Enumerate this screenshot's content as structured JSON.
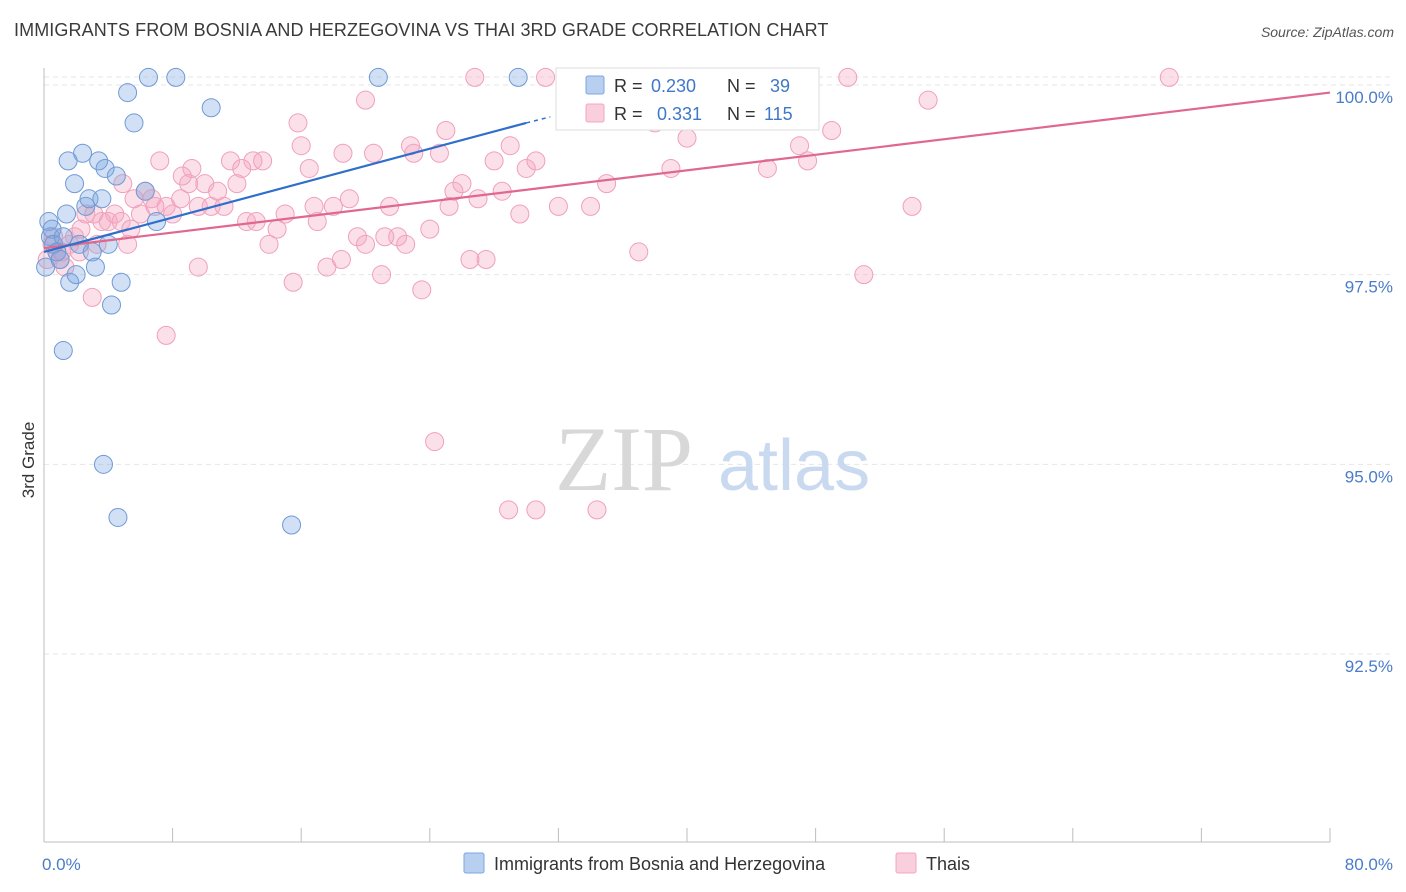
{
  "title": "IMMIGRANTS FROM BOSNIA AND HERZEGOVINA VS THAI 3RD GRADE CORRELATION CHART",
  "source": "Source: ZipAtlas.com",
  "watermark": {
    "zip": "ZIP",
    "atlas": "atlas"
  },
  "colors": {
    "blue": "#7ba7e0",
    "blue_line": "#2f6fcb",
    "pink": "#f4a6c0",
    "pink_line": "#e0688f",
    "tick_text": "#4a7cc9"
  },
  "legend": {
    "rows": [
      {
        "r_label": "R =",
        "r_value": "0.230",
        "n_label": "N =",
        "n_value": "39"
      },
      {
        "r_label": "R =",
        "r_value": "0.331",
        "n_label": "N =",
        "n_value": "115"
      }
    ]
  },
  "bottom_legend": [
    "Immigrants from Bosnia and Herzegovina",
    "Thais"
  ],
  "chart_data": {
    "type": "scatter",
    "title": "IMMIGRANTS FROM BOSNIA AND HERZEGOVINA VS THAI 3RD GRADE CORRELATION CHART",
    "xlabel": "",
    "ylabel": "3rd Grade",
    "xlim": [
      0,
      80
    ],
    "ylim": [
      90.0,
      100.6
    ],
    "x_tick_labels": [
      "0.0%",
      "80.0%"
    ],
    "y_ticks": [
      92.5,
      95.0,
      97.5,
      100.0
    ],
    "y_tick_labels": [
      "92.5%",
      "95.0%",
      "97.5%",
      "100.0%"
    ],
    "grid": true,
    "legend_position": "top-center",
    "series": [
      {
        "name": "Immigrants from Bosnia and Herzegovina",
        "r": 0.23,
        "n": 39,
        "trend": {
          "x": [
            0.0,
            30.0
          ],
          "y": [
            97.8,
            99.5
          ]
        },
        "points": [
          [
            0.1,
            97.6
          ],
          [
            0.3,
            98.2
          ],
          [
            0.4,
            98.0
          ],
          [
            0.5,
            98.1
          ],
          [
            0.6,
            97.9
          ],
          [
            0.8,
            97.8
          ],
          [
            1.0,
            97.7
          ],
          [
            1.2,
            98.0
          ],
          [
            1.4,
            98.3
          ],
          [
            1.5,
            99.0
          ],
          [
            1.6,
            97.4
          ],
          [
            1.9,
            98.7
          ],
          [
            2.0,
            97.5
          ],
          [
            2.2,
            97.9
          ],
          [
            2.4,
            99.1
          ],
          [
            2.6,
            98.4
          ],
          [
            2.8,
            98.5
          ],
          [
            3.0,
            97.8
          ],
          [
            3.2,
            97.6
          ],
          [
            3.4,
            99.0
          ],
          [
            3.6,
            98.5
          ],
          [
            3.8,
            98.9
          ],
          [
            4.0,
            97.9
          ],
          [
            4.2,
            97.1
          ],
          [
            4.5,
            98.8
          ],
          [
            4.8,
            97.4
          ],
          [
            5.2,
            99.9
          ],
          [
            5.6,
            99.5
          ],
          [
            6.3,
            98.6
          ],
          [
            6.5,
            100.1
          ],
          [
            7.0,
            98.2
          ],
          [
            8.2,
            100.1
          ],
          [
            10.4,
            99.7
          ],
          [
            20.8,
            100.1
          ],
          [
            29.5,
            100.1
          ],
          [
            1.2,
            96.5
          ],
          [
            3.7,
            95.0
          ],
          [
            4.6,
            94.3
          ],
          [
            15.4,
            94.2
          ]
        ]
      },
      {
        "name": "Thais",
        "r": 0.331,
        "n": 115,
        "trend": {
          "x": [
            0.0,
            80.0
          ],
          "y": [
            97.85,
            99.9
          ]
        },
        "points": [
          [
            0.2,
            97.7
          ],
          [
            0.5,
            97.9
          ],
          [
            0.8,
            97.8
          ],
          [
            1.0,
            97.7
          ],
          [
            1.3,
            97.6
          ],
          [
            1.6,
            97.9
          ],
          [
            1.9,
            98.0
          ],
          [
            2.2,
            97.8
          ],
          [
            2.6,
            98.3
          ],
          [
            3.0,
            97.2
          ],
          [
            3.3,
            97.9
          ],
          [
            3.6,
            98.2
          ],
          [
            4.0,
            98.2
          ],
          [
            4.4,
            98.3
          ],
          [
            4.8,
            98.2
          ],
          [
            5.2,
            97.9
          ],
          [
            5.6,
            98.5
          ],
          [
            6.0,
            98.3
          ],
          [
            6.3,
            98.6
          ],
          [
            6.7,
            98.5
          ],
          [
            7.2,
            99.0
          ],
          [
            7.6,
            98.4
          ],
          [
            8.0,
            98.3
          ],
          [
            8.5,
            98.5
          ],
          [
            9.0,
            98.7
          ],
          [
            9.6,
            98.4
          ],
          [
            10.0,
            98.7
          ],
          [
            10.4,
            98.4
          ],
          [
            10.8,
            98.6
          ],
          [
            11.2,
            98.4
          ],
          [
            11.6,
            99.0
          ],
          [
            12.0,
            98.7
          ],
          [
            12.6,
            98.2
          ],
          [
            13.0,
            99.0
          ],
          [
            13.6,
            99.0
          ],
          [
            14.0,
            97.9
          ],
          [
            14.5,
            98.1
          ],
          [
            15.0,
            98.3
          ],
          [
            15.5,
            97.4
          ],
          [
            16.0,
            99.2
          ],
          [
            16.5,
            98.9
          ],
          [
            17.0,
            98.2
          ],
          [
            17.6,
            97.6
          ],
          [
            18.0,
            98.4
          ],
          [
            18.5,
            97.7
          ],
          [
            19.0,
            98.5
          ],
          [
            19.5,
            98.0
          ],
          [
            20.0,
            97.9
          ],
          [
            20.5,
            99.1
          ],
          [
            21.0,
            97.5
          ],
          [
            21.5,
            98.4
          ],
          [
            22.0,
            98.0
          ],
          [
            22.5,
            97.9
          ],
          [
            23.0,
            99.1
          ],
          [
            23.5,
            97.3
          ],
          [
            24.0,
            98.1
          ],
          [
            24.6,
            99.1
          ],
          [
            25.0,
            99.4
          ],
          [
            25.5,
            98.6
          ],
          [
            26.0,
            98.7
          ],
          [
            26.5,
            97.7
          ],
          [
            27.0,
            98.5
          ],
          [
            27.5,
            97.7
          ],
          [
            28.0,
            99.0
          ],
          [
            28.5,
            98.6
          ],
          [
            29.0,
            99.2
          ],
          [
            29.6,
            98.3
          ],
          [
            30.0,
            98.9
          ],
          [
            30.6,
            99.0
          ],
          [
            31.2,
            100.1
          ],
          [
            32.0,
            98.4
          ],
          [
            33.0,
            100.0
          ],
          [
            34.0,
            98.4
          ],
          [
            35.0,
            98.7
          ],
          [
            36.0,
            100.0
          ],
          [
            37.0,
            97.8
          ],
          [
            38.0,
            99.5
          ],
          [
            39.0,
            98.9
          ],
          [
            40.0,
            99.3
          ],
          [
            42.0,
            100.1
          ],
          [
            45.0,
            98.9
          ],
          [
            47.0,
            99.2
          ],
          [
            47.5,
            99.0
          ],
          [
            49.0,
            99.4
          ],
          [
            50.0,
            100.1
          ],
          [
            51.0,
            97.5
          ],
          [
            54.0,
            98.4
          ],
          [
            55.0,
            99.8
          ],
          [
            70.0,
            100.1
          ],
          [
            20.0,
            99.8
          ],
          [
            18.6,
            99.1
          ],
          [
            15.8,
            99.5
          ],
          [
            22.8,
            99.2
          ],
          [
            26.8,
            100.1
          ],
          [
            9.2,
            98.9
          ],
          [
            12.3,
            98.9
          ],
          [
            5.4,
            98.1
          ],
          [
            3.1,
            98.3
          ],
          [
            2.3,
            98.1
          ],
          [
            1.1,
            97.8
          ],
          [
            0.6,
            98.0
          ],
          [
            4.9,
            98.7
          ],
          [
            6.9,
            98.4
          ],
          [
            8.6,
            98.8
          ],
          [
            13.2,
            98.2
          ],
          [
            16.8,
            98.4
          ],
          [
            21.2,
            98.0
          ],
          [
            25.2,
            98.4
          ],
          [
            7.6,
            96.7
          ],
          [
            9.6,
            97.6
          ],
          [
            24.3,
            95.3
          ],
          [
            28.9,
            94.4
          ],
          [
            30.6,
            94.4
          ],
          [
            34.4,
            94.4
          ],
          [
            40.8,
            99.8
          ]
        ]
      }
    ]
  }
}
